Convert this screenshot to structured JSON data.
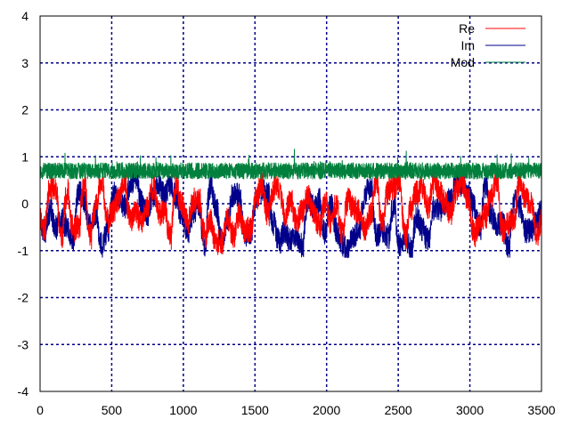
{
  "chart_data": {
    "type": "line",
    "title": "",
    "xlabel": "",
    "ylabel": "",
    "xlim": [
      0,
      3500
    ],
    "ylim": [
      -4,
      4
    ],
    "x_ticks": [
      "0",
      "500",
      "1000",
      "1500",
      "2000",
      "2500",
      "3000",
      "3500"
    ],
    "y_ticks": [
      "4",
      "3",
      "2",
      "1",
      "0",
      "-1",
      "-2",
      "-3",
      "-4"
    ],
    "grid": true,
    "legend_position": "top-right",
    "n_points": 3500,
    "series": [
      {
        "name": "Re",
        "color": "#ff0000",
        "y_range": [
          -1.15,
          0.85
        ],
        "typical_range": [
          -0.9,
          0.6
        ],
        "behavior": "rapidly oscillating noise"
      },
      {
        "name": "Im",
        "color": "#00008b",
        "y_range": [
          -1.15,
          0.9
        ],
        "typical_range": [
          -1.0,
          0.6
        ],
        "behavior": "rapidly oscillating noise"
      },
      {
        "name": "Mod",
        "color": "#00803c",
        "y_range": [
          0.4,
          1.2
        ],
        "typical_range": [
          0.5,
          0.9
        ],
        "behavior": "noisy, near 0.7"
      }
    ]
  }
}
